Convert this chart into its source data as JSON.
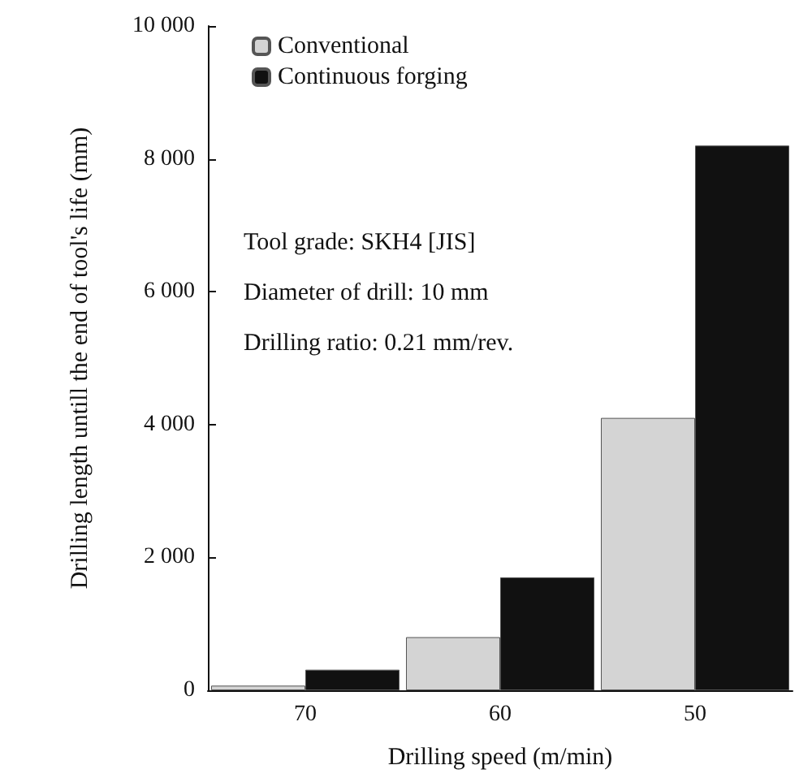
{
  "chart_data": {
    "type": "bar",
    "xlabel": "Drilling speed (m/min)",
    "ylabel": "Drilling length untill the end of tool's life (mm)",
    "categories": [
      "70",
      "60",
      "50"
    ],
    "series": [
      {
        "name": "Conventional",
        "color": "#d4d4d4",
        "values": [
          70,
          800,
          4100
        ]
      },
      {
        "name": "Continuous forging",
        "color": "#111111",
        "values": [
          310,
          1700,
          8200
        ]
      }
    ],
    "ylim": [
      0,
      10000
    ],
    "yticks": [
      0,
      {
        "value": 2000,
        "label": "2 000"
      },
      {
        "value": 4000,
        "label": "4 000"
      },
      {
        "value": 6000,
        "label": "6 000"
      },
      {
        "value": 8000,
        "label": "8 000"
      },
      {
        "value": 10000,
        "label": "10 000"
      }
    ],
    "annotations": [
      "Tool grade: SKH4 [JIS]",
      "Diameter of drill: 10 mm",
      "Drilling ratio: 0.21 mm/rev."
    ],
    "grid": false,
    "legend": "top left"
  }
}
